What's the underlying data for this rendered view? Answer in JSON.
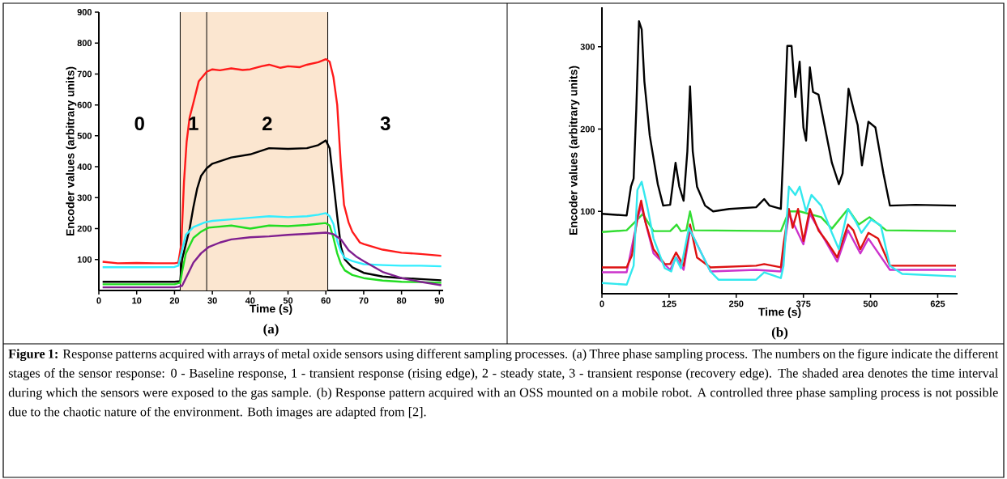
{
  "chart_data": [
    {
      "type": "line",
      "xlabel": "Time (s)",
      "ylabel": "Encoder values (arbitrary units)",
      "xlim": [
        0,
        91
      ],
      "ylim": [
        0,
        900
      ],
      "xticks": [
        0,
        10,
        20,
        30,
        40,
        50,
        60,
        70,
        80,
        90
      ],
      "yticks": [
        100,
        200,
        300,
        400,
        500,
        600,
        700,
        800,
        900
      ],
      "bands": [
        {
          "axis": "x",
          "from": 21.5,
          "to": 60.5,
          "color": "#fbe6d0"
        }
      ],
      "ref_lines": [
        {
          "axis": "x",
          "value": 21.5
        },
        {
          "axis": "x",
          "value": 28.5
        },
        {
          "axis": "x",
          "value": 60.5
        }
      ],
      "annotations": [
        "0",
        "1",
        "2",
        "3",
        "(a)"
      ],
      "series": [
        {
          "color": "#ff1a1a",
          "x": [
            1,
            5,
            10,
            15,
            20,
            21,
            21.8,
            22.5,
            23.2,
            24,
            25,
            26.4,
            28.5,
            30,
            32,
            35,
            38,
            40,
            43,
            45,
            48,
            50,
            53,
            55,
            58,
            60,
            61,
            62,
            63,
            64,
            64.8,
            66,
            67,
            69,
            70,
            75,
            80,
            85,
            90.5
          ],
          "values": [
            93,
            88,
            89,
            88,
            88,
            90,
            150,
            350,
            480,
            560,
            607,
            676,
            707,
            715,
            712,
            718,
            713,
            715,
            725,
            730,
            720,
            725,
            722,
            730,
            738,
            748,
            740,
            690,
            600,
            398,
            277,
            220,
            190,
            155,
            150,
            132,
            122,
            118,
            112
          ]
        },
        {
          "color": "#000000",
          "x": [
            1,
            10,
            20,
            21.5,
            22,
            23,
            24,
            25,
            26,
            27,
            28.5,
            30,
            35,
            40,
            45,
            50,
            55,
            58,
            60,
            61,
            62,
            63,
            64,
            65,
            67,
            70,
            75,
            80,
            85,
            90.5
          ],
          "values": [
            28,
            28,
            28,
            30,
            100,
            150,
            200,
            270,
            330,
            370,
            395,
            410,
            430,
            440,
            460,
            458,
            460,
            470,
            485,
            460,
            350,
            240,
            140,
            100,
            75,
            57,
            45,
            40,
            37,
            33
          ]
        },
        {
          "color": "#33eeff",
          "x": [
            1,
            10,
            20,
            21,
            21.8,
            23,
            25,
            28,
            30,
            35,
            40,
            45,
            50,
            55,
            58,
            60,
            61,
            62,
            63,
            64,
            65,
            67,
            70,
            75,
            80,
            85,
            90.5
          ],
          "values": [
            75,
            75,
            76,
            80,
            120,
            180,
            205,
            220,
            225,
            230,
            235,
            240,
            237,
            240,
            245,
            250,
            240,
            215,
            160,
            125,
            105,
            95,
            85,
            82,
            80,
            80,
            78
          ]
        },
        {
          "color": "#22dd22",
          "x": [
            1,
            10,
            20,
            21.5,
            22,
            23,
            25,
            27,
            29,
            35,
            40,
            45,
            50,
            55,
            60,
            61,
            62,
            63,
            64,
            65,
            67,
            70,
            75,
            80,
            85,
            90.5
          ],
          "values": [
            20,
            20,
            20,
            25,
            60,
            120,
            170,
            190,
            203,
            210,
            200,
            210,
            208,
            212,
            218,
            210,
            170,
            120,
            85,
            65,
            50,
            40,
            32,
            28,
            27,
            25
          ]
        },
        {
          "color": "#7f1f8f",
          "x": [
            1,
            10,
            20,
            21,
            22,
            23,
            25,
            27,
            29,
            32,
            35,
            40,
            45,
            50,
            55,
            60,
            62,
            64,
            66,
            68,
            70,
            75,
            80,
            85,
            90.5
          ],
          "values": [
            10,
            10,
            10,
            12,
            15,
            40,
            90,
            120,
            140,
            155,
            165,
            172,
            175,
            180,
            183,
            187,
            182,
            165,
            130,
            110,
            95,
            60,
            40,
            28,
            17
          ]
        }
      ]
    },
    {
      "type": "line",
      "xlabel": "Time (s)",
      "ylabel": "Encoder values (arbitrary units)",
      "xlim": [
        0,
        662
      ],
      "ylim": [
        0,
        348
      ],
      "xticks": [
        0,
        125,
        250,
        375,
        500,
        625
      ],
      "yticks": [
        100,
        200,
        300
      ],
      "annotations": [
        "(b)"
      ],
      "series": [
        {
          "color": "#000000",
          "x": [
            0,
            46,
            54,
            59,
            64,
            69,
            74,
            79,
            89,
            104,
            114,
            127,
            137,
            144,
            152,
            159,
            164,
            169,
            177,
            192,
            207,
            237,
            287,
            302,
            312,
            333,
            338,
            345,
            353,
            360,
            368,
            375,
            380,
            387,
            393,
            403,
            416,
            428,
            441,
            448,
            459,
            468,
            476,
            484,
            496,
            509,
            524,
            536,
            584,
            659
          ],
          "values": [
            97,
            95,
            130,
            140,
            225,
            331,
            321,
            258,
            192,
            133,
            107,
            108,
            159,
            130,
            113,
            173,
            252,
            173,
            130,
            107,
            100,
            103,
            105,
            115,
            107,
            103,
            179,
            301,
            301,
            239,
            282,
            202,
            186,
            275,
            245,
            242,
            199,
            159,
            133,
            146,
            249,
            225,
            205,
            156,
            209,
            202,
            146,
            107,
            108,
            107
          ]
        },
        {
          "color": "#33dd33",
          "x": [
            0,
            46,
            66,
            76,
            96,
            127,
            139,
            147,
            157,
            164,
            172,
            333,
            348,
            368,
            408,
            428,
            458,
            478,
            498,
            529,
            659
          ],
          "values": [
            75,
            77,
            90,
            97,
            76,
            76,
            84,
            76,
            77,
            100,
            77,
            76,
            100,
            100,
            93,
            79,
            103,
            84,
            93,
            77,
            76
          ]
        },
        {
          "color": "#cc33cc",
          "x": [
            0,
            46,
            66,
            73,
            96,
            127,
            138,
            152,
            164,
            202,
            287,
            333,
            348,
            375,
            387,
            438,
            458,
            481,
            496,
            536,
            659
          ],
          "values": [
            26,
            26,
            90,
            107,
            49,
            29,
            44,
            29,
            77,
            27,
            29,
            27,
            97,
            60,
            97,
            39,
            77,
            49,
            67,
            29,
            29
          ]
        },
        {
          "color": "#dd1111",
          "x": [
            0,
            46,
            56,
            66,
            73,
            81,
            96,
            117,
            127,
            138,
            152,
            164,
            177,
            202,
            287,
            302,
            333,
            338,
            348,
            355,
            365,
            375,
            387,
            403,
            418,
            438,
            458,
            468,
            481,
            496,
            514,
            536,
            659
          ],
          "values": [
            32,
            32,
            47,
            93,
            113,
            87,
            54,
            36,
            36,
            50,
            34,
            84,
            44,
            32,
            34,
            36,
            32,
            60,
            103,
            80,
            103,
            64,
            103,
            77,
            64,
            44,
            84,
            77,
            54,
            74,
            67,
            34,
            34
          ]
        },
        {
          "color": "#33e8ee",
          "x": [
            0,
            46,
            59,
            66,
            74,
            84,
            96,
            117,
            129,
            137,
            147,
            162,
            177,
            202,
            217,
            287,
            302,
            333,
            338,
            348,
            360,
            368,
            380,
            390,
            408,
            428,
            441,
            458,
            473,
            483,
            501,
            519,
            536,
            559,
            659
          ],
          "values": [
            13,
            11,
            34,
            126,
            136,
            107,
            67,
            31,
            27,
            44,
            31,
            80,
            60,
            27,
            17,
            17,
            26,
            19,
            34,
            130,
            120,
            130,
            100,
            120,
            107,
            74,
            54,
            103,
            87,
            74,
            90,
            83,
            34,
            24,
            21
          ]
        }
      ]
    },
    {
      "type": "other",
      "annotations": [
        "**Figure 1:** Response patterns acquired with arrays of metal oxide sensors using different sampling processes. (a) Three phase sampling process. The numbers on the figure indicate the different stages of the sensor response: 0 - Baseline response, 1 - transient response (rising edge), 2 - steady state, 3 - transient response (recovery edge). The shaded area denotes the time interval during which the sensors were exposed to the gas sample. (b) Response pattern acquired with an OSS mounted on a mobile robot. A controlled three phase sampling process is not possible due to the chaotic nature of the environment. Both images are adapted from [2]."
      ]
    }
  ]
}
